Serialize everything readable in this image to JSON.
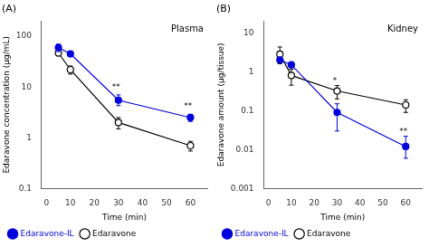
{
  "chart_data": [
    {
      "type": "line",
      "title": "Plasma",
      "subtitle": "(A)",
      "xlabel": "Time (min)",
      "ylabel": "Edaravone concentration (μg/mL)",
      "log": "y",
      "grid": false,
      "legend": "lower left",
      "xlim": [
        -2,
        67
      ],
      "xticks": [
        0,
        10,
        20,
        30,
        40,
        50,
        60
      ],
      "ylim": [
        0.1,
        200
      ],
      "yticks": [
        0.1,
        1,
        10,
        100
      ],
      "x": [
        5,
        10,
        30,
        60
      ],
      "series": [
        {
          "name": "Edaravone",
          "color": "#000000",
          "marker": "open circle",
          "line_style": "solid",
          "values": [
            47,
            22,
            2.0,
            0.7
          ],
          "error_lower": [
            6,
            4,
            0.5,
            0.15
          ],
          "error_upper": [
            6,
            4,
            0.5,
            0.15
          ]
        },
        {
          "name": "Edaravone-IL",
          "color": "#0000dd",
          "marker": "circle",
          "line_style": "solid",
          "values": [
            60,
            45,
            5.5,
            2.5
          ],
          "error_lower": [
            10,
            5,
            1.2,
            0.4
          ],
          "error_upper": [
            10,
            5,
            1.5,
            0.4
          ]
        }
      ],
      "annotations": [
        {
          "x": 29,
          "y": 8.0,
          "text": "**"
        },
        {
          "x": 59,
          "y": 3.5,
          "text": "**"
        }
      ]
    },
    {
      "type": "line",
      "title": "Kidney",
      "subtitle": "(B)",
      "xlabel": "Time (min)",
      "ylabel": "Edaravone amount (μg/tissue)",
      "log": "y",
      "grid": false,
      "legend": "lower left",
      "xlim": [
        -2,
        67
      ],
      "xticks": [
        0,
        10,
        20,
        30,
        40,
        50,
        60
      ],
      "ylim": [
        0.001,
        20
      ],
      "yticks": [
        0.001,
        0.01,
        0.1,
        1,
        10
      ],
      "x": [
        5,
        10,
        30,
        60
      ],
      "series": [
        {
          "name": "Edaravone",
          "color": "#000000",
          "marker": "open circle",
          "line_style": "solid",
          "values": [
            2.8,
            0.8,
            0.32,
            0.14
          ],
          "error_lower": [
            1.2,
            0.35,
            0.12,
            0.05
          ],
          "error_upper": [
            1.5,
            0.35,
            0.12,
            0.05
          ]
        },
        {
          "name": "Edaravone-IL",
          "color": "#0000dd",
          "marker": "circle",
          "line_style": "solid",
          "values": [
            2.0,
            1.5,
            0.09,
            0.012
          ],
          "error_lower": [
            0.3,
            0.2,
            0.06,
            0.006
          ],
          "error_upper": [
            0.3,
            0.2,
            0.06,
            0.01
          ]
        }
      ],
      "annotations": [
        {
          "x": 29,
          "y": 0.45,
          "text": "*"
        },
        {
          "x": 59,
          "y": 0.022,
          "text": "**"
        }
      ]
    }
  ]
}
